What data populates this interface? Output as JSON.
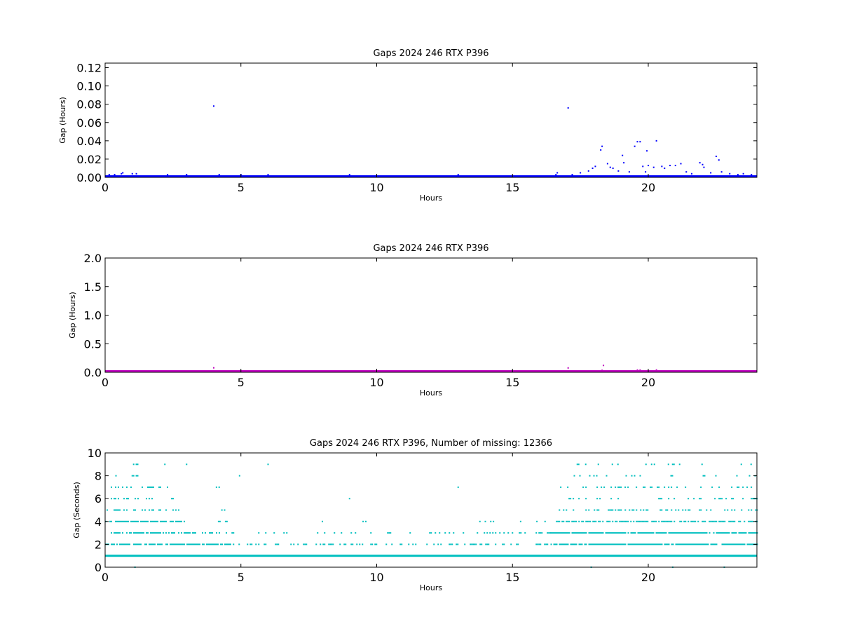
{
  "chart_data": [
    {
      "type": "scatter",
      "title": "Gaps 2024 246 RTX  P396",
      "xlabel": "Hours",
      "ylabel": "Gap (Hours)",
      "xlim": [
        0,
        24
      ],
      "ylim": [
        0,
        0.125
      ],
      "x_ticks": [
        "0",
        "5",
        "10",
        "15",
        "20"
      ],
      "y_ticks": [
        "0.00",
        "0.02",
        "0.04",
        "0.06",
        "0.08",
        "0.10",
        "0.12"
      ],
      "color": "#0000ff",
      "grid": false,
      "series": [
        {
          "baseline_band": {
            "x_range": [
              0,
              24
            ],
            "y_range": [
              0,
              0.002
            ]
          },
          "points": [
            [
              0.15,
              0.003
            ],
            [
              0.35,
              0.003
            ],
            [
              0.6,
              0.004
            ],
            [
              0.65,
              0.005
            ],
            [
              1.0,
              0.004
            ],
            [
              1.15,
              0.004
            ],
            [
              2.3,
              0.003
            ],
            [
              3.0,
              0.003
            ],
            [
              4.0,
              0.078
            ],
            [
              4.2,
              0.003
            ],
            [
              5.0,
              0.003
            ],
            [
              6.0,
              0.003
            ],
            [
              9.0,
              0.003
            ],
            [
              13.0,
              0.003
            ],
            [
              16.6,
              0.003
            ],
            [
              16.65,
              0.005
            ],
            [
              17.05,
              0.076
            ],
            [
              17.2,
              0.003
            ],
            [
              17.5,
              0.005
            ],
            [
              17.8,
              0.007
            ],
            [
              17.95,
              0.01
            ],
            [
              18.05,
              0.012
            ],
            [
              18.25,
              0.03
            ],
            [
              18.3,
              0.034
            ],
            [
              18.5,
              0.015
            ],
            [
              18.6,
              0.011
            ],
            [
              18.7,
              0.01
            ],
            [
              18.9,
              0.007
            ],
            [
              19.05,
              0.024
            ],
            [
              19.1,
              0.016
            ],
            [
              19.3,
              0.006
            ],
            [
              19.5,
              0.034
            ],
            [
              19.6,
              0.039
            ],
            [
              19.7,
              0.039
            ],
            [
              19.8,
              0.012
            ],
            [
              19.9,
              0.006
            ],
            [
              19.95,
              0.029
            ],
            [
              20.0,
              0.013
            ],
            [
              20.2,
              0.011
            ],
            [
              20.3,
              0.04
            ],
            [
              20.5,
              0.012
            ],
            [
              20.6,
              0.01
            ],
            [
              20.8,
              0.013
            ],
            [
              21.0,
              0.013
            ],
            [
              21.2,
              0.015
            ],
            [
              21.4,
              0.006
            ],
            [
              21.6,
              0.004
            ],
            [
              21.9,
              0.016
            ],
            [
              22.0,
              0.014
            ],
            [
              22.05,
              0.011
            ],
            [
              22.3,
              0.005
            ],
            [
              22.5,
              0.023
            ],
            [
              22.6,
              0.019
            ],
            [
              22.7,
              0.006
            ],
            [
              23.0,
              0.004
            ],
            [
              23.3,
              0.003
            ],
            [
              23.5,
              0.004
            ],
            [
              23.8,
              0.003
            ]
          ]
        }
      ]
    },
    {
      "type": "scatter",
      "title": "Gaps 2024 246 RTX  P396",
      "xlabel": "Hours",
      "ylabel": "Gap (Hours)",
      "xlim": [
        0,
        24
      ],
      "ylim": [
        0,
        2.0
      ],
      "x_ticks": [
        "0",
        "5",
        "10",
        "15",
        "20"
      ],
      "y_ticks": [
        "0.0",
        "0.5",
        "1.0",
        "1.5",
        "2.0"
      ],
      "color": "#bf00bf",
      "grid": false,
      "series": [
        {
          "baseline_band": {
            "x_range": [
              0,
              24
            ],
            "y_range": [
              0,
              0.03
            ]
          },
          "points": [
            [
              4.0,
              0.078
            ],
            [
              17.05,
              0.076
            ],
            [
              18.35,
              0.12
            ],
            [
              18.3,
              0.034
            ],
            [
              19.6,
              0.039
            ],
            [
              19.7,
              0.039
            ],
            [
              20.3,
              0.04
            ],
            [
              22.5,
              0.023
            ]
          ]
        }
      ]
    },
    {
      "type": "scatter",
      "title": "Gaps 2024 246 RTX  P396, Number of missing: 12366",
      "xlabel": "Hours",
      "ylabel": "Gap (Seconds)",
      "xlim": [
        0,
        24
      ],
      "ylim": [
        0,
        10
      ],
      "x_ticks": [
        "0",
        "5",
        "10",
        "15",
        "20"
      ],
      "y_ticks": [
        "0",
        "2",
        "4",
        "6",
        "8",
        "10"
      ],
      "color": "#00bfbf",
      "grid": false,
      "series": [
        {
          "level_ranges": [
            {
              "y": 1,
              "density": 1.0,
              "ranges": [
                [
                  0,
                  24
                ]
              ]
            },
            {
              "y": 2,
              "density": 0.8,
              "ranges": [
                [
                  0,
                  4.6
                ]
              ]
            },
            {
              "y": 2,
              "density": 0.35,
              "ranges": [
                [
                  4.6,
                  16.4
                ]
              ]
            },
            {
              "y": 2,
              "density": 0.9,
              "ranges": [
                [
                  16.4,
                  24
                ]
              ]
            },
            {
              "y": 3,
              "density": 0.6,
              "ranges": [
                [
                  0,
                  4.6
                ]
              ]
            },
            {
              "y": 3,
              "density": 0.18,
              "ranges": [
                [
                  4.6,
                  16.4
                ]
              ]
            },
            {
              "y": 3,
              "density": 0.9,
              "ranges": [
                [
                  16.4,
                  24
                ]
              ]
            },
            {
              "y": 4,
              "density": 0.7,
              "ranges": [
                [
                  0,
                  2.9
                ],
                [
                  16.6,
                  24
                ]
              ]
            },
            {
              "y": 4,
              "density": 0.5,
              "ranges": [
                [
                  4.1,
                  4.5
                ]
              ]
            },
            {
              "y": 5,
              "density": 0.3,
              "ranges": [
                [
                  0,
                  2.7
                ],
                [
                  16.6,
                  24
                ]
              ]
            },
            {
              "y": 6,
              "density": 0.25,
              "ranges": [
                [
                  0,
                  3.0
                ],
                [
                  16.7,
                  24
                ]
              ]
            },
            {
              "y": 7,
              "density": 0.25,
              "ranges": [
                [
                  0,
                  2.6
                ],
                [
                  16.7,
                  24
                ]
              ]
            },
            {
              "y": 8,
              "density": 0.15,
              "ranges": [
                [
                  17.2,
                  24
                ]
              ]
            },
            {
              "y": 9,
              "density": 0.12,
              "ranges": [
                [
                  17.0,
                  23.8
                ]
              ]
            }
          ],
          "points": [
            [
              0.4,
              8
            ],
            [
              1.0,
              8
            ],
            [
              1.05,
              8
            ],
            [
              1.15,
              8
            ],
            [
              1.2,
              8
            ],
            [
              4.95,
              8
            ],
            [
              1.05,
              9
            ],
            [
              1.15,
              9
            ],
            [
              1.2,
              9
            ],
            [
              2.2,
              9
            ],
            [
              3.0,
              9
            ],
            [
              6.0,
              9
            ],
            [
              4.1,
              7
            ],
            [
              4.2,
              7
            ],
            [
              13.0,
              7
            ],
            [
              9.0,
              6
            ],
            [
              4.3,
              5
            ],
            [
              4.4,
              5
            ],
            [
              8.0,
              4
            ],
            [
              9.5,
              4
            ],
            [
              9.6,
              4
            ],
            [
              13.8,
              4
            ],
            [
              14.0,
              4
            ],
            [
              14.2,
              4
            ],
            [
              14.3,
              4
            ],
            [
              15.3,
              4
            ],
            [
              15.9,
              4
            ],
            [
              16.2,
              4
            ],
            [
              1.1,
              0
            ],
            [
              17.9,
              0
            ],
            [
              20.9,
              0
            ],
            [
              22.8,
              0
            ]
          ]
        }
      ]
    }
  ]
}
